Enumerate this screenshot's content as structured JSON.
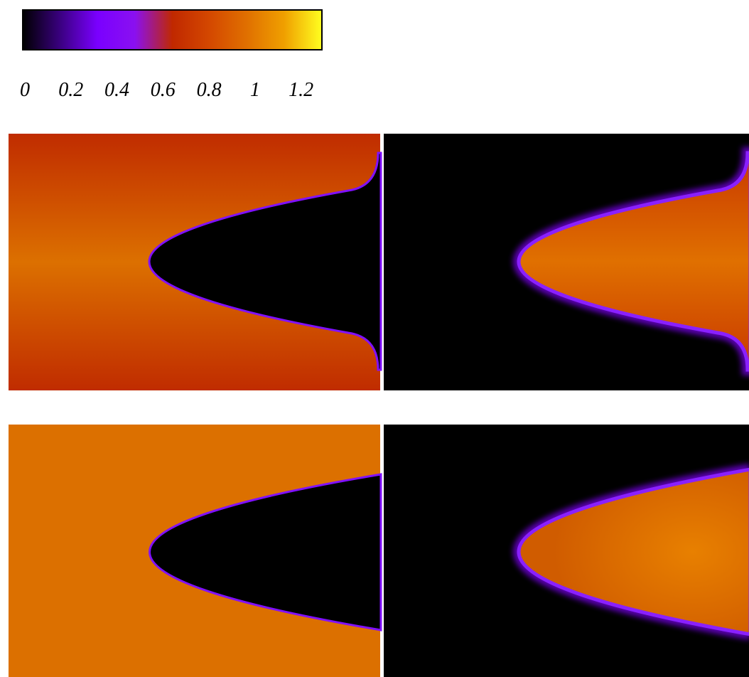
{
  "chart_data": {
    "type": "colorbar",
    "xlim": [
      0,
      1.3
    ],
    "xticks": [
      0,
      0.2,
      0.4,
      0.6,
      0.8,
      1,
      1.2
    ],
    "colormap": [
      "#000000",
      "#3a0080",
      "#7a00ff",
      "#8a10f0",
      "#c02800",
      "#d44800",
      "#e07000",
      "#f0a000",
      "#ffff20"
    ]
  }
}
